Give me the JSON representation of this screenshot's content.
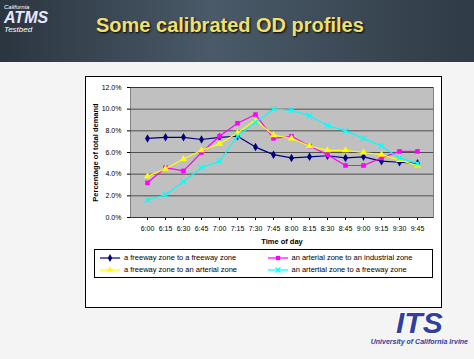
{
  "chart_data": {
    "type": "line",
    "title": "Some calibrated OD profiles",
    "x_label": "Time of day",
    "y_label": "Percentage of total demand",
    "categories": [
      "6:00",
      "6:15",
      "6:30",
      "6:45",
      "7:00",
      "7:15",
      "7:30",
      "7:45",
      "8:00",
      "8:15",
      "8:30",
      "8:45",
      "9:00",
      "9:15",
      "9:30",
      "9:45"
    ],
    "series": [
      {
        "name": "a freeway zone to a freeway zone",
        "color": "#000080",
        "marker": "diamond",
        "values": [
          7.3,
          7.4,
          7.4,
          7.2,
          7.4,
          7.5,
          6.5,
          5.8,
          5.5,
          5.6,
          5.7,
          5.5,
          5.6,
          5.2,
          5.1,
          5.0
        ]
      },
      {
        "name": "an arterial zone to an industrial zone",
        "color": "#ff00ff",
        "marker": "square",
        "values": [
          3.2,
          4.6,
          4.3,
          6.0,
          7.5,
          8.7,
          9.5,
          7.3,
          7.5,
          6.6,
          5.8,
          4.8,
          4.8,
          5.5,
          6.1,
          6.1
        ]
      },
      {
        "name": "a freeway zone to an arterial zone",
        "color": "#ffff00",
        "marker": "triangle",
        "values": [
          3.8,
          4.5,
          5.4,
          6.2,
          6.8,
          7.8,
          9.0,
          7.6,
          7.3,
          6.6,
          6.2,
          6.2,
          6.0,
          5.8,
          5.3,
          4.8
        ]
      },
      {
        "name": "an artertial zone to a freeway zone",
        "color": "#00ffff",
        "marker": "times",
        "values": [
          1.6,
          2.1,
          3.3,
          4.6,
          5.2,
          7.5,
          8.8,
          10.0,
          9.9,
          9.4,
          8.5,
          8.0,
          7.3,
          6.6,
          5.5,
          5.0
        ]
      }
    ],
    "ylim": [
      0,
      12
    ],
    "yticks": [
      {
        "value": 0,
        "label": "0.0%"
      },
      {
        "value": 2,
        "label": "2.0%"
      },
      {
        "value": 4,
        "label": "4.0%"
      },
      {
        "value": 6,
        "label": "6.0%"
      },
      {
        "value": 8,
        "label": "8.0%"
      },
      {
        "value": 10,
        "label": "10.0%"
      },
      {
        "value": 12,
        "label": "12.0%"
      }
    ],
    "grid": true,
    "legend": "bottom"
  },
  "slide": {
    "logo_left": [
      "California",
      "ATMS",
      "Testbed"
    ],
    "logo_right": [
      "ITS",
      "University of California Irvine"
    ]
  }
}
